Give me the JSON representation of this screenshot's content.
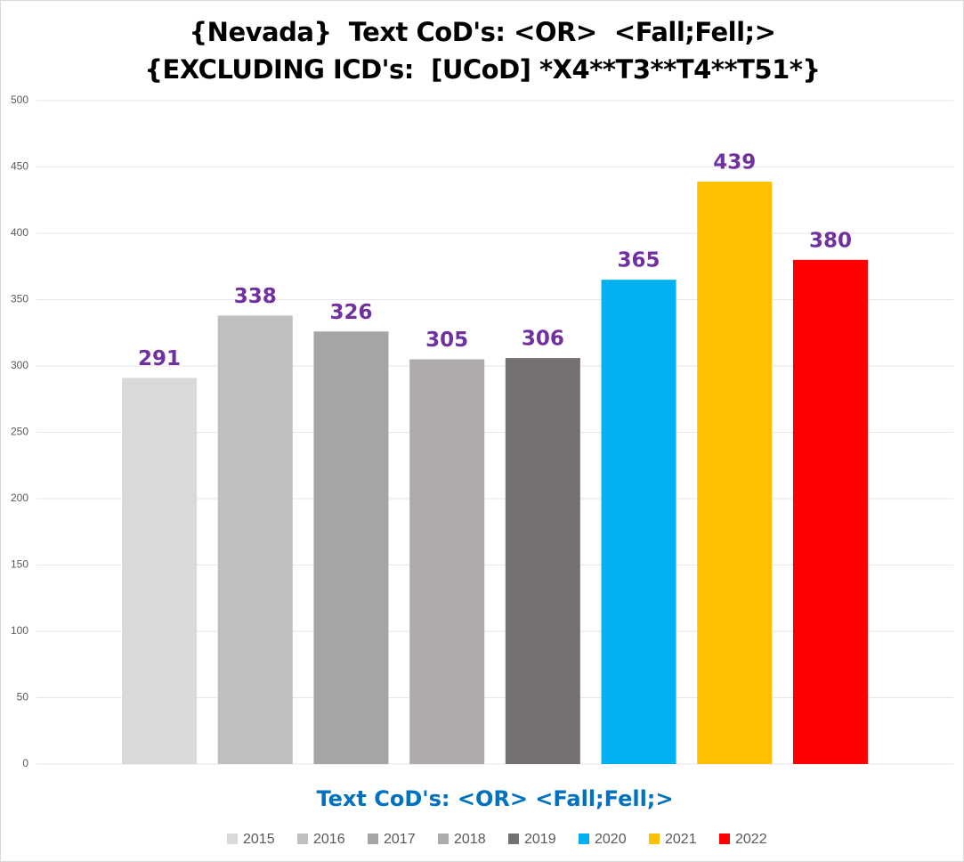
{
  "chart_data": {
    "type": "bar",
    "title": "{Nevada}  Text CoD's: <OR>  <Fall;Fell;>{EXCLUDING ICD's:  [UCoD] *X4**T3**T4**T51*}",
    "categories": [
      "Text CoD's: <OR> <Fall;Fell;>"
    ],
    "series": [
      {
        "name": "2015",
        "color": "#d9d9d9",
        "values": [
          291
        ]
      },
      {
        "name": "2016",
        "color": "#bfbfbf",
        "values": [
          338
        ]
      },
      {
        "name": "2017",
        "color": "#a5a5a5",
        "values": [
          326
        ]
      },
      {
        "name": "2018",
        "color": "#afabab",
        "values": [
          305
        ]
      },
      {
        "name": "2019",
        "color": "#767171",
        "values": [
          306
        ]
      },
      {
        "name": "2020",
        "color": "#00b0f0",
        "values": [
          365
        ]
      },
      {
        "name": "2021",
        "color": "#ffc000",
        "values": [
          439
        ]
      },
      {
        "name": "2022",
        "color": "#ff0000",
        "values": [
          380
        ]
      }
    ],
    "ylim": [
      0,
      500
    ],
    "yticks": [
      0,
      50,
      100,
      150,
      200,
      250,
      300,
      350,
      400,
      450,
      500
    ],
    "grid": true,
    "legend": "bottom"
  }
}
